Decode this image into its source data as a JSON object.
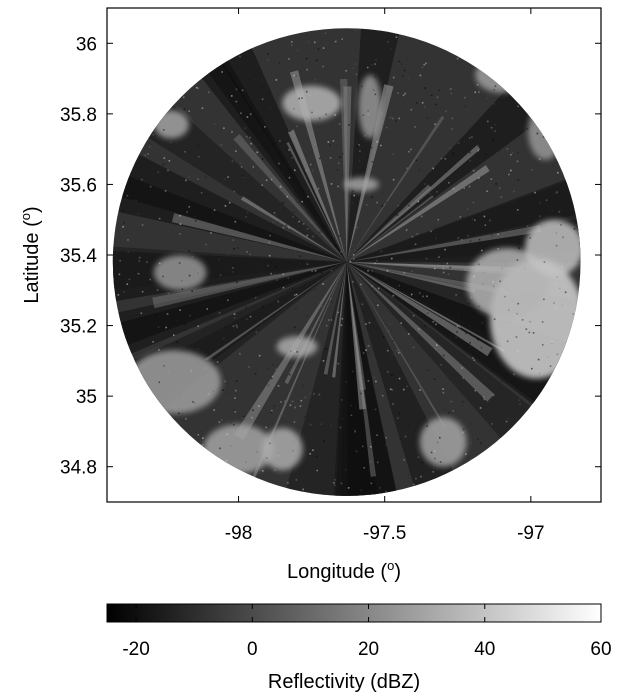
{
  "chart_data": {
    "type": "heatmap",
    "title": "",
    "xlabel": "Longitude",
    "xlabel_unit": "o",
    "ylabel": "Latitude",
    "ylabel_unit": "o",
    "xlim": [
      -98.45,
      -96.76
    ],
    "ylim": [
      34.7,
      36.1
    ],
    "xticks": [
      {
        "value": -98,
        "label": "-98"
      },
      {
        "value": -97.5,
        "label": "-97.5"
      },
      {
        "value": -97,
        "label": "-97"
      }
    ],
    "yticks": [
      {
        "value": 36,
        "label": "36"
      },
      {
        "value": 35.8,
        "label": "35.8"
      },
      {
        "value": 35.6,
        "label": "35.6"
      },
      {
        "value": 35.4,
        "label": "35.4"
      },
      {
        "value": 35.2,
        "label": "35.2"
      },
      {
        "value": 35,
        "label": "35"
      },
      {
        "value": 34.8,
        "label": "34.8"
      }
    ],
    "colormap": "gray",
    "radar_center": {
      "lon": -97.63,
      "lat": 35.38
    },
    "radar_range_lon": 0.8,
    "colorbar": {
      "label": "Reflectivity (dBZ)",
      "range": [
        -25,
        60
      ],
      "ticks": [
        {
          "value": -20,
          "label": "-20"
        },
        {
          "value": 0,
          "label": "0"
        },
        {
          "value": 20,
          "label": "20"
        },
        {
          "value": 40,
          "label": "40"
        },
        {
          "value": 60,
          "label": "60"
        }
      ]
    },
    "echo_cells": [
      {
        "lon": -96.98,
        "lat": 35.22,
        "rlon": 0.16,
        "rlat": 0.17,
        "dbz": 45
      },
      {
        "lon": -97.08,
        "lat": 35.32,
        "rlon": 0.14,
        "rlat": 0.1,
        "dbz": 35
      },
      {
        "lon": -96.92,
        "lat": 35.42,
        "rlon": 0.1,
        "rlat": 0.08,
        "dbz": 40
      },
      {
        "lon": -98.22,
        "lat": 35.04,
        "rlon": 0.16,
        "rlat": 0.09,
        "dbz": 28
      },
      {
        "lon": -98.0,
        "lat": 34.85,
        "rlon": 0.12,
        "rlat": 0.07,
        "dbz": 30
      },
      {
        "lon": -97.85,
        "lat": 34.85,
        "rlon": 0.07,
        "rlat": 0.06,
        "dbz": 32
      },
      {
        "lon": -97.3,
        "lat": 34.87,
        "rlon": 0.08,
        "rlat": 0.07,
        "dbz": 30
      },
      {
        "lon": -97.75,
        "lat": 35.83,
        "rlon": 0.1,
        "rlat": 0.05,
        "dbz": 35
      },
      {
        "lon": -97.58,
        "lat": 35.6,
        "rlon": 0.06,
        "rlat": 0.02,
        "dbz": 30
      },
      {
        "lon": -97.1,
        "lat": 35.91,
        "rlon": 0.09,
        "rlat": 0.05,
        "dbz": 28
      },
      {
        "lon": -98.23,
        "lat": 35.77,
        "rlon": 0.06,
        "rlat": 0.04,
        "dbz": 30
      },
      {
        "lon": -98.2,
        "lat": 35.35,
        "rlon": 0.09,
        "rlat": 0.05,
        "dbz": 25
      },
      {
        "lon": -97.8,
        "lat": 35.14,
        "rlon": 0.07,
        "rlat": 0.03,
        "dbz": 32
      },
      {
        "lon": -97.55,
        "lat": 35.82,
        "rlon": 0.04,
        "rlat": 0.09,
        "dbz": 25
      },
      {
        "lon": -96.95,
        "lat": 35.75,
        "rlon": 0.06,
        "rlat": 0.08,
        "dbz": 25
      }
    ]
  }
}
